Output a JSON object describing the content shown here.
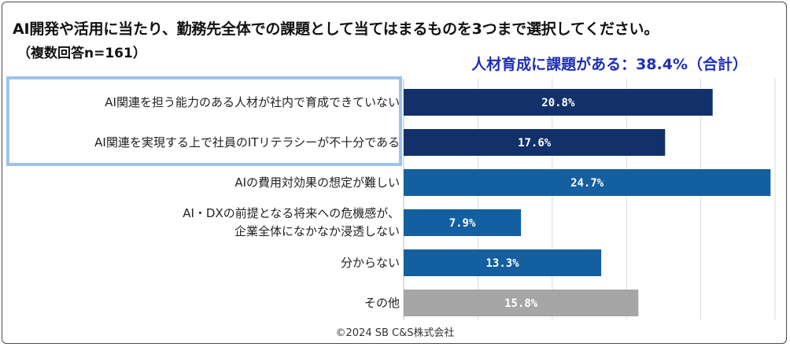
{
  "header": {
    "title": "AI開発や活用に当たり、勤務先全体での課題として当てはまるものを3つまで選択してください。",
    "subtitle": "（複数回答n=161）",
    "highlight_note": "人材育成に課題がある：38.4%（合計）"
  },
  "footer": {
    "copyright": "©2024 SB C&S株式会社"
  },
  "colors": {
    "dark_navy": "#12316b",
    "medium_blue": "#135fa0",
    "gray": "#a6a6a6",
    "highlight_border": "#9dc3ec",
    "note_text": "#1f2fb8"
  },
  "chart_data": {
    "type": "bar",
    "orientation": "horizontal",
    "categories": [
      [
        "AI関連を担う能力のある人材が社内で育成できていない"
      ],
      [
        "AI関連を実現する上で社員のITリテラシーが不十分である"
      ],
      [
        "AIの費用対効果の想定が難しい"
      ],
      [
        "AI・DXの前提となる将来への危機感が、",
        "企業全体になかなか浸透しない"
      ],
      [
        "分からない"
      ],
      [
        "その他"
      ]
    ],
    "values": [
      20.8,
      17.6,
      24.7,
      7.9,
      13.3,
      15.8
    ],
    "value_labels": [
      "20.8%",
      "17.6%",
      "24.7%",
      "7.9%",
      "13.3%",
      "15.8%"
    ],
    "bar_colors": [
      "#12316b",
      "#12316b",
      "#135fa0",
      "#135fa0",
      "#135fa0",
      "#a6a6a6"
    ],
    "xlim": [
      0,
      25
    ],
    "grid": true,
    "highlighted_categories": [
      0,
      1
    ]
  }
}
